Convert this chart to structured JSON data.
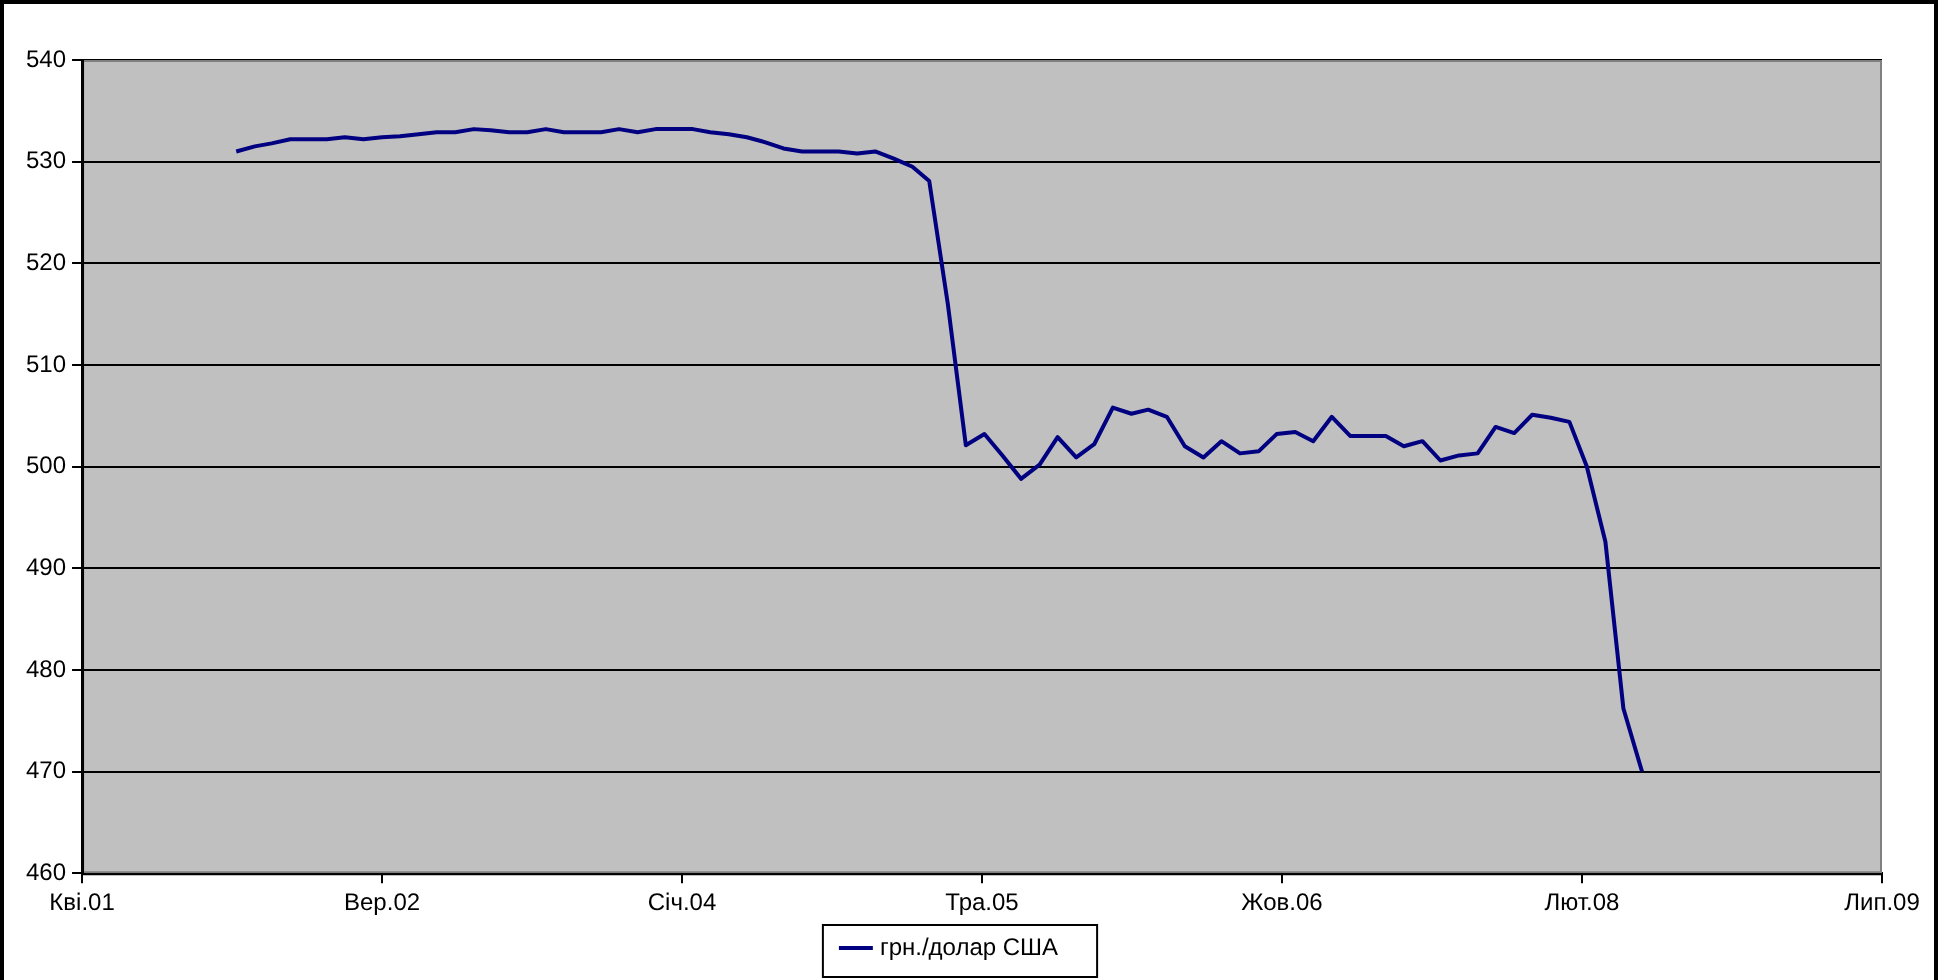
{
  "chart_data": {
    "type": "line",
    "x": [
      "2002-01",
      "2002-02",
      "2002-03",
      "2002-04",
      "2002-05",
      "2002-06",
      "2002-07",
      "2002-08",
      "2002-09",
      "2002-10",
      "2002-11",
      "2002-12",
      "2003-01",
      "2003-02",
      "2003-03",
      "2003-04",
      "2003-05",
      "2003-06",
      "2003-07",
      "2003-08",
      "2003-09",
      "2003-10",
      "2003-11",
      "2003-12",
      "2004-01",
      "2004-02",
      "2004-03",
      "2004-04",
      "2004-05",
      "2004-06",
      "2004-07",
      "2004-08",
      "2004-09",
      "2004-10",
      "2004-11",
      "2004-12",
      "2005-01",
      "2005-02",
      "2005-03",
      "2005-04",
      "2005-05",
      "2005-06",
      "2005-07",
      "2005-08",
      "2005-09",
      "2005-10",
      "2005-11",
      "2005-12",
      "2006-01",
      "2006-02",
      "2006-03",
      "2006-04",
      "2006-05",
      "2006-06",
      "2006-07",
      "2006-08",
      "2006-09",
      "2006-10",
      "2006-11",
      "2006-12",
      "2007-01",
      "2007-02",
      "2007-03",
      "2007-04",
      "2007-05",
      "2007-06",
      "2007-07",
      "2007-08",
      "2007-09",
      "2007-10",
      "2007-11",
      "2007-12",
      "2008-01",
      "2008-02",
      "2008-03",
      "2008-04",
      "2008-05",
      "2008-06"
    ],
    "series": [
      {
        "name": "грн./долар США",
        "color": "#000080",
        "values": [
          531.0,
          531.5,
          531.8,
          532.2,
          532.2,
          532.2,
          532.4,
          532.2,
          532.4,
          532.5,
          532.7,
          532.9,
          532.9,
          533.2,
          533.1,
          532.9,
          532.9,
          533.2,
          532.9,
          532.9,
          532.9,
          533.2,
          532.9,
          533.2,
          533.2,
          533.2,
          532.9,
          532.7,
          532.4,
          531.9,
          531.3,
          531.0,
          531.0,
          531.0,
          530.8,
          531.0,
          530.3,
          529.5,
          528.1,
          516,
          502.1,
          503.2,
          501.1,
          498.8,
          500.2,
          502.9,
          500.9,
          502.2,
          505.8,
          505.2,
          505.6,
          504.9,
          502.0,
          500.9,
          502.5,
          501.3,
          501.5,
          503.2,
          503.4,
          502.5,
          504.9,
          503.0,
          503.0,
          503.0,
          502.0,
          502.5,
          500.6,
          501.1,
          501.3,
          503.9,
          503.3,
          505.1,
          504.8,
          504.4,
          500.0,
          492.6,
          476.2,
          470.0
        ]
      }
    ],
    "xlim": [
      "2001-04-19",
      "2009-07-06"
    ],
    "xticks": [
      {
        "value": "2001-04-19",
        "label": "Кві.01"
      },
      {
        "value": "2002-09-01",
        "label": "Вер.02"
      },
      {
        "value": "2004-01-14",
        "label": "Січ.04"
      },
      {
        "value": "2005-05-28",
        "label": "Тра.05"
      },
      {
        "value": "2006-10-10",
        "label": "Жов.06"
      },
      {
        "value": "2008-02-22",
        "label": "Лют.08"
      },
      {
        "value": "2009-07-06",
        "label": "Лип.09"
      }
    ],
    "ylim": [
      460,
      540
    ],
    "yticks": [
      460,
      470,
      480,
      490,
      500,
      510,
      520,
      530,
      540
    ],
    "grid": "y",
    "legend": "bottom",
    "marker": "none",
    "line_style": "solid"
  }
}
